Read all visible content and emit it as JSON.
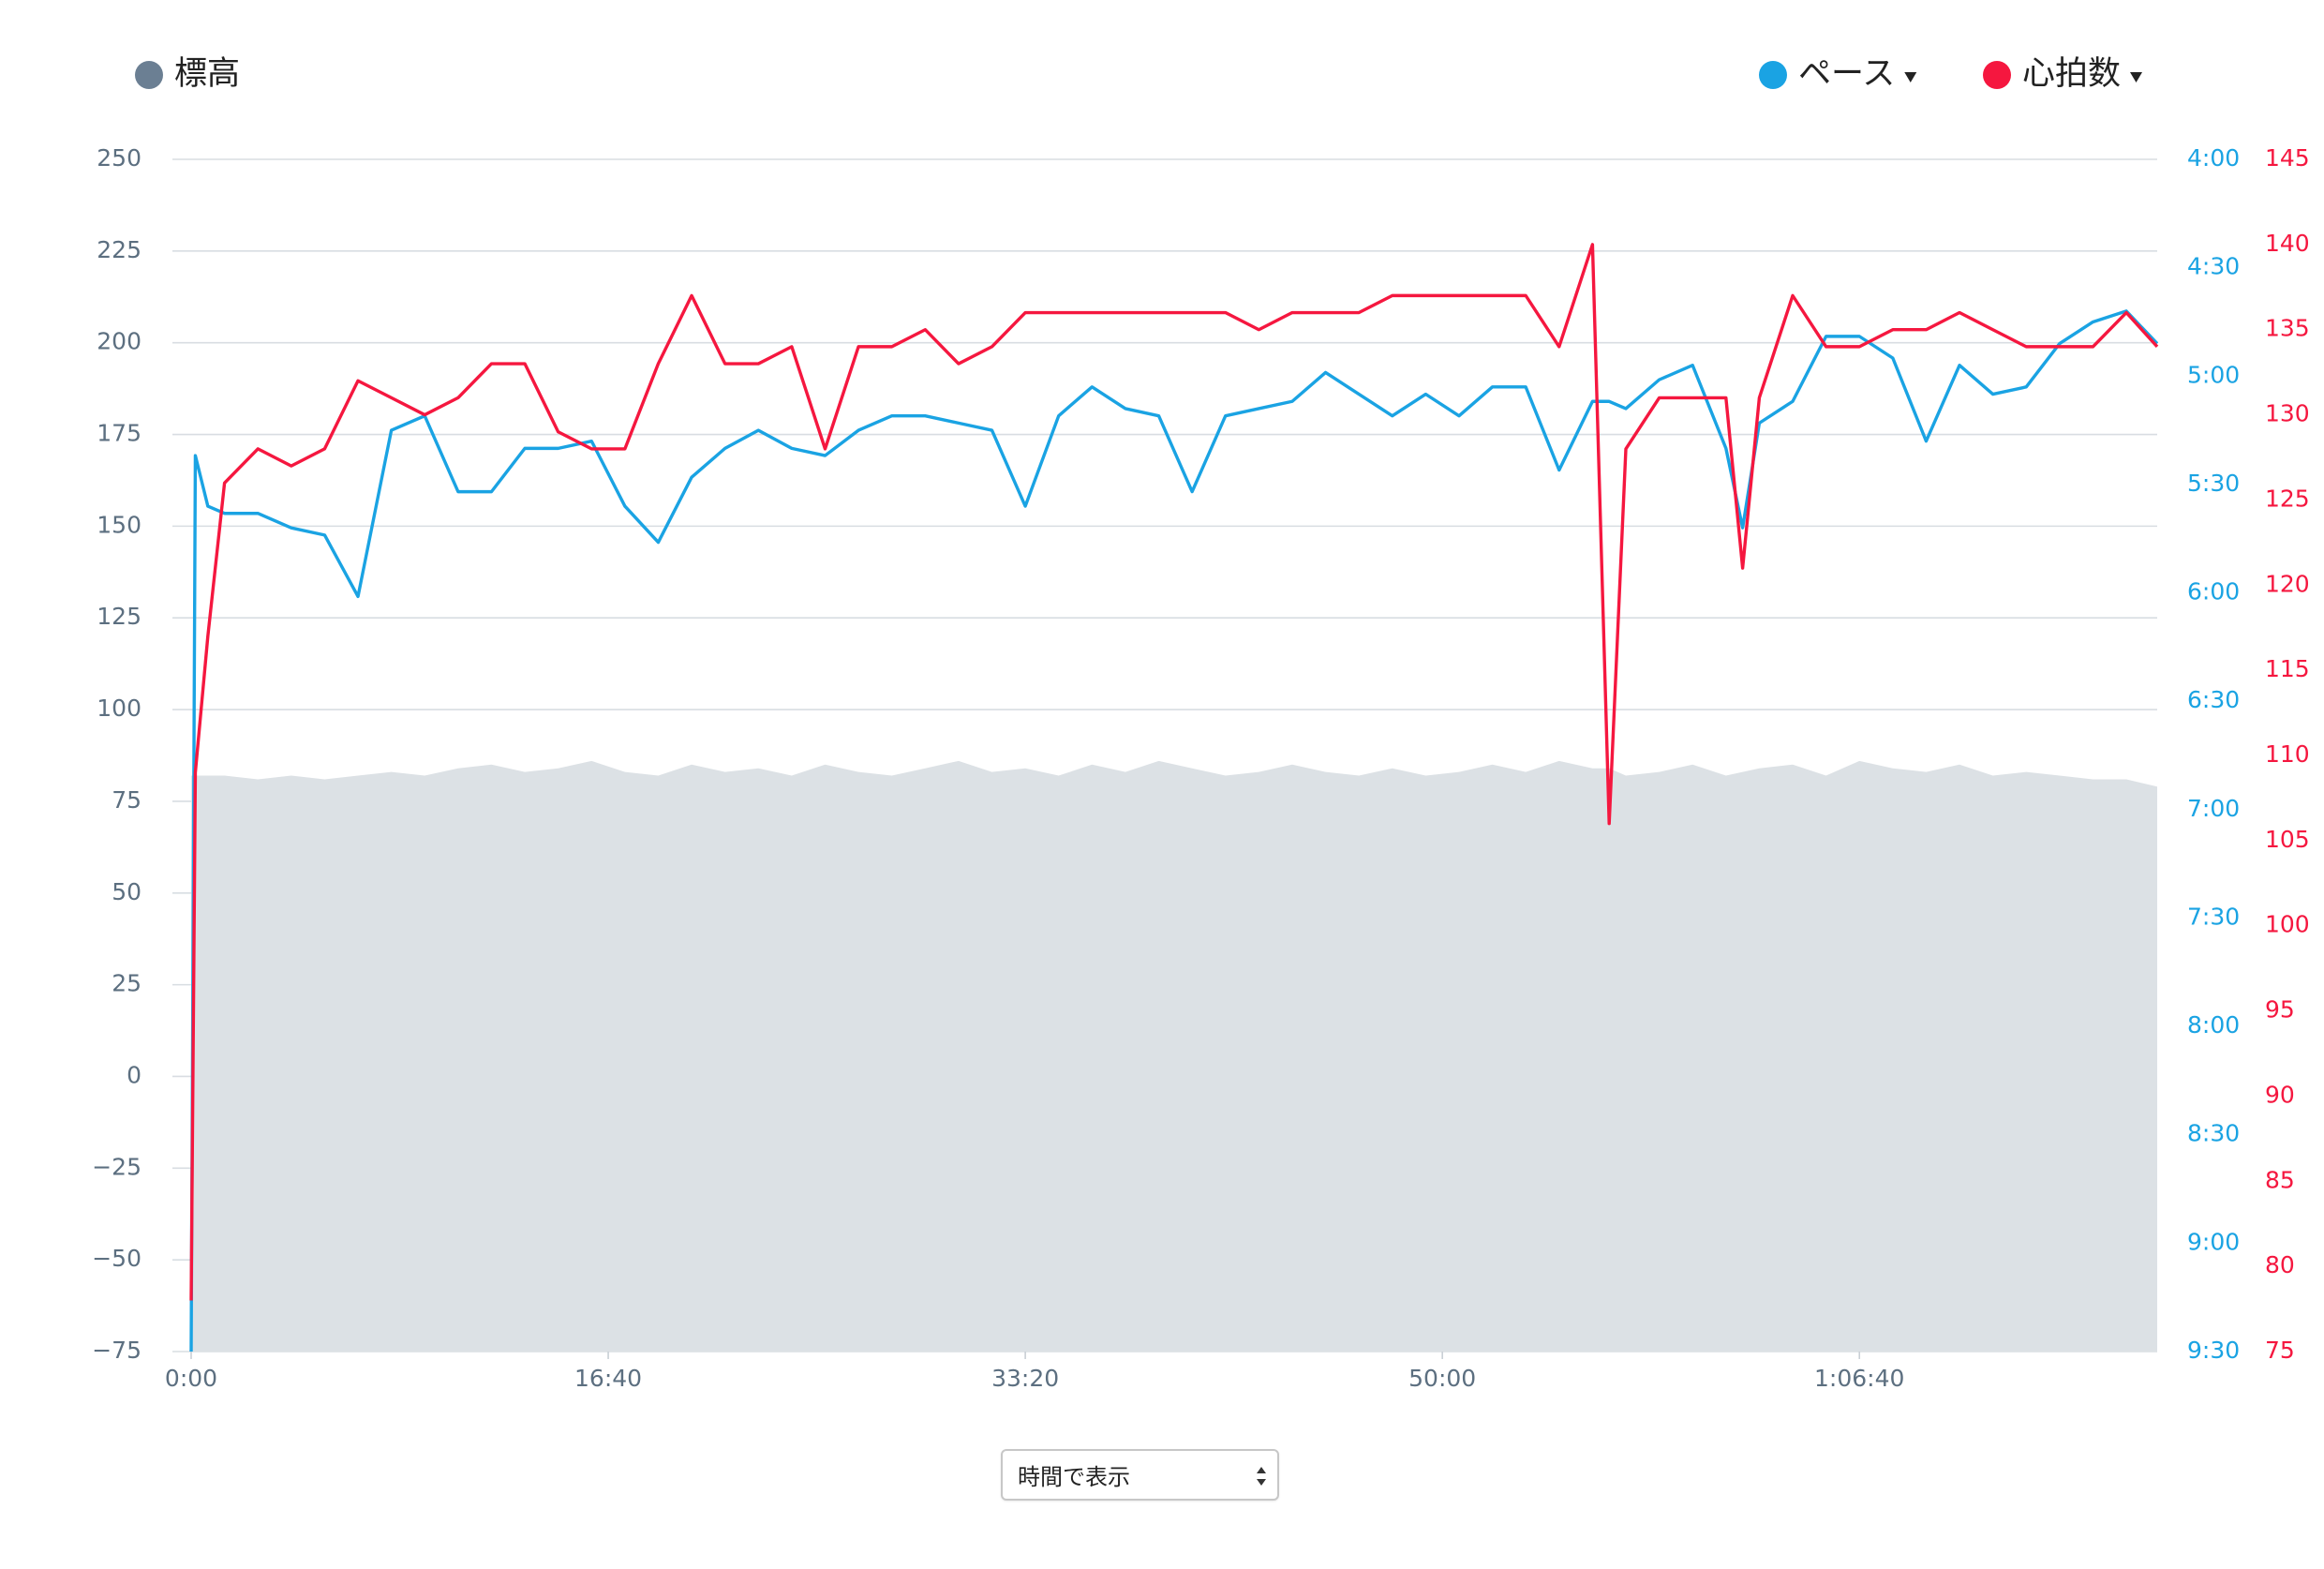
{
  "chart_data": {
    "type": "line",
    "x": [
      0,
      10,
      40,
      80,
      160,
      240,
      320,
      400,
      480,
      560,
      640,
      720,
      800,
      880,
      960,
      1040,
      1120,
      1200,
      1280,
      1360,
      1440,
      1520,
      1600,
      1680,
      1760,
      1840,
      1920,
      2000,
      2080,
      2160,
      2240,
      2320,
      2400,
      2480,
      2560,
      2640,
      2720,
      2800,
      2880,
      2960,
      3040,
      3120,
      3200,
      3280,
      3360,
      3400,
      3440,
      3520,
      3600,
      3680,
      3720,
      3760,
      3840,
      3920,
      4000,
      4080,
      4160,
      4240,
      4320,
      4400,
      4480,
      4560,
      4640,
      4714
    ],
    "xlim": [
      0,
      4714
    ],
    "xticks": [
      {
        "value": 0,
        "label": "0:00"
      },
      {
        "value": 1000,
        "label": "16:40"
      },
      {
        "value": 2000,
        "label": "33:20"
      },
      {
        "value": 3000,
        "label": "50:00"
      },
      {
        "value": 4000,
        "label": "1:06:40"
      }
    ],
    "ylim": [
      -75,
      250
    ],
    "yticks": [
      {
        "value": -75,
        "label": "−75"
      },
      {
        "value": -50,
        "label": "−50"
      },
      {
        "value": -25,
        "label": "−25"
      },
      0,
      25,
      50,
      75,
      100,
      125,
      150,
      175,
      200,
      225,
      250
    ],
    "y2lim": [
      240,
      570
    ],
    "y2_inverted": true,
    "y2ticks": [
      {
        "value": 240,
        "label": "4:00"
      },
      {
        "value": 270,
        "label": "4:30"
      },
      {
        "value": 300,
        "label": "5:00"
      },
      {
        "value": 330,
        "label": "5:30"
      },
      {
        "value": 360,
        "label": "6:00"
      },
      {
        "value": 390,
        "label": "6:30"
      },
      {
        "value": 420,
        "label": "7:00"
      },
      {
        "value": 450,
        "label": "7:30"
      },
      {
        "value": 480,
        "label": "8:00"
      },
      {
        "value": 510,
        "label": "8:30"
      },
      {
        "value": 540,
        "label": "9:00"
      },
      {
        "value": 570,
        "label": "9:30"
      }
    ],
    "y3lim": [
      75,
      145
    ],
    "y3ticks": [
      75,
      80,
      85,
      90,
      95,
      100,
      105,
      110,
      115,
      120,
      125,
      130,
      135,
      140,
      145
    ],
    "grid": true,
    "series": [
      {
        "name": "標高",
        "color": "#6b7f93",
        "fill": "#dce1e5",
        "kind": "area",
        "axis": "y",
        "values": [
          82,
          82,
          82,
          82,
          81,
          82,
          81,
          82,
          83,
          82,
          84,
          85,
          83,
          84,
          86,
          83,
          82,
          85,
          83,
          84,
          82,
          85,
          83,
          82,
          84,
          86,
          83,
          84,
          82,
          85,
          83,
          86,
          84,
          82,
          83,
          85,
          83,
          82,
          84,
          82,
          83,
          85,
          83,
          86,
          84,
          84,
          82,
          83,
          85,
          82,
          83,
          84,
          85,
          82,
          86,
          84,
          83,
          85,
          82,
          83,
          82,
          81,
          81,
          79
        ]
      },
      {
        "name": "ペース",
        "color": "#1aa3e3",
        "kind": "line",
        "axis": "y2",
        "values": [
          570,
          322,
          336,
          338,
          338,
          342,
          344,
          361,
          315,
          311,
          332,
          332,
          320,
          320,
          318,
          336,
          346,
          328,
          320,
          315,
          320,
          322,
          315,
          311,
          311,
          313,
          315,
          336,
          311,
          303,
          309,
          311,
          332,
          311,
          309,
          307,
          299,
          305,
          311,
          305,
          311,
          303,
          303,
          326,
          307,
          307,
          309,
          301,
          297,
          320,
          342,
          313,
          307,
          289,
          289,
          295,
          318,
          297,
          305,
          303,
          291,
          285,
          282,
          291
        ]
      },
      {
        "name": "心拍数",
        "color": "#f5173f",
        "kind": "line",
        "axis": "y3",
        "values": [
          78,
          109,
          117,
          126,
          128,
          127,
          128,
          132,
          131,
          130,
          131,
          133,
          133,
          129,
          128,
          128,
          133,
          137,
          133,
          133,
          134,
          128,
          134,
          134,
          135,
          133,
          134,
          136,
          136,
          136,
          136,
          136,
          136,
          136,
          135,
          136,
          136,
          136,
          137,
          137,
          137,
          137,
          137,
          134,
          140,
          106,
          128,
          131,
          131,
          131,
          121,
          131,
          137,
          134,
          134,
          135,
          135,
          136,
          135,
          134,
          134,
          134,
          136,
          134
        ]
      }
    ]
  },
  "select_label": "時間で表示"
}
